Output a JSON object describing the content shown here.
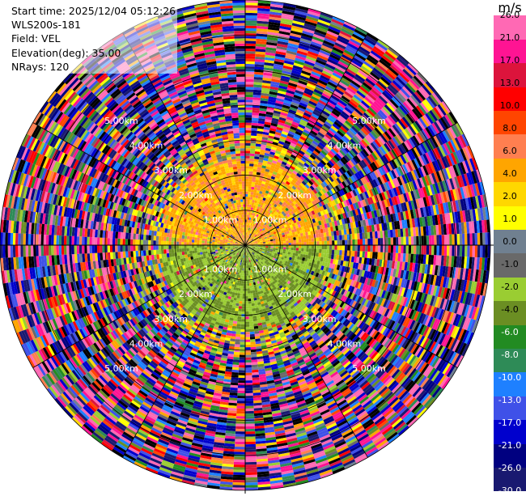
{
  "info": {
    "start_time": "Start time: 2025/12/04 05:12:26",
    "instrument": "WLS200s-181",
    "field": "Field: VEL",
    "elevation": "Elevation(deg): 35.00",
    "nrays": "NRays: 120"
  },
  "colorbar": {
    "unit": "m/s",
    "colors": [
      "#191970",
      "#000080",
      "#0000cd",
      "#3f51e8",
      "#1e80ff",
      "#2e8b57",
      "#228b22",
      "#6b8e23",
      "#9acd32",
      "#696969",
      "#708090",
      "#ffff00",
      "#ffd700",
      "#ffa500",
      "#ff7f50",
      "#ff4500",
      "#ff0000",
      "#dc143c",
      "#ff1493",
      "#ff69b4"
    ],
    "labels": [
      "26.0",
      "21.0",
      "17.0",
      "13.0",
      "10.0",
      "8.0",
      "6.0",
      "4.0",
      "2.0",
      "1.0",
      "0.0",
      "-1.0",
      "-2.0",
      "-4.0",
      "-6.0",
      "-8.0",
      "-10.0",
      "-13.0",
      "-17.0",
      "-21.0",
      "-26.0",
      "-30.0"
    ]
  },
  "chart_data": {
    "type": "heatmap",
    "projection": "polar PPI",
    "field": "VEL",
    "units": "m/s",
    "elevation_deg": 35.0,
    "n_rays": 120,
    "max_range_km": 7,
    "range_rings_km": [
      1,
      2,
      3,
      4,
      5,
      6,
      7
    ],
    "ring_labels": [
      "1.00km",
      "2.00km",
      "3.00km",
      "4.00km",
      "5.00km"
    ],
    "color_levels": [
      -30,
      -26,
      -21,
      -17,
      -13,
      -10,
      -8,
      -6,
      -4,
      -2,
      -1,
      0,
      1,
      2,
      4,
      6,
      8,
      10,
      13,
      17,
      21,
      26
    ],
    "near_field": {
      "north_half_mean_ms": 3,
      "south_half_mean_ms": -4,
      "extent_km": 2.5
    }
  }
}
